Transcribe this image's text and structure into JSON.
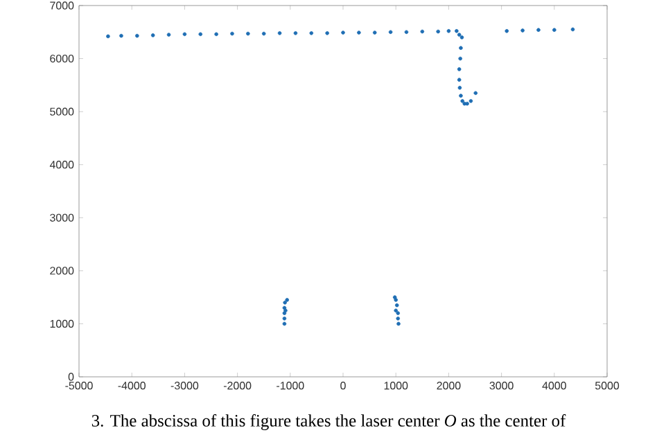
{
  "chart_data": {
    "type": "scatter",
    "color": "#1f6eb4",
    "x": [
      -4450,
      -4200,
      -3900,
      -3600,
      -3300,
      -3000,
      -2700,
      -2400,
      -2100,
      -1800,
      -1500,
      -1200,
      -900,
      -600,
      -300,
      0,
      300,
      600,
      900,
      1200,
      1500,
      1800,
      2000,
      2150,
      2200,
      2250,
      2230,
      2220,
      2200,
      2200,
      2210,
      2230,
      2260,
      2300,
      2350,
      2420,
      2510,
      3100,
      3400,
      3700,
      4000,
      4350,
      -1060,
      -1100,
      -1110,
      -1110,
      -1110,
      -1110,
      -1090,
      980,
      1000,
      1020,
      1000,
      1040,
      1040,
      1050
    ],
    "values": [
      6420,
      6430,
      6430,
      6440,
      6450,
      6460,
      6460,
      6460,
      6470,
      6470,
      6470,
      6480,
      6480,
      6480,
      6480,
      6490,
      6490,
      6490,
      6500,
      6500,
      6510,
      6510,
      6520,
      6520,
      6450,
      6400,
      6200,
      6000,
      5800,
      5600,
      5450,
      5300,
      5200,
      5150,
      5150,
      5200,
      5350,
      6520,
      6530,
      6540,
      6540,
      6550,
      1450,
      1400,
      1300,
      1200,
      1100,
      1000,
      1250,
      1500,
      1450,
      1350,
      1250,
      1200,
      1100,
      1000
    ],
    "xlim": [
      -5000,
      5000
    ],
    "ylim": [
      0,
      7000
    ],
    "xticks": [
      -5000,
      -4000,
      -3000,
      -2000,
      -1000,
      0,
      1000,
      2000,
      3000,
      4000,
      5000
    ],
    "yticks": [
      0,
      1000,
      2000,
      3000,
      4000,
      5000,
      6000,
      7000
    ],
    "annotations": [
      "3. The abscissa of this figure takes the laser center *O* as the center of"
    ]
  }
}
